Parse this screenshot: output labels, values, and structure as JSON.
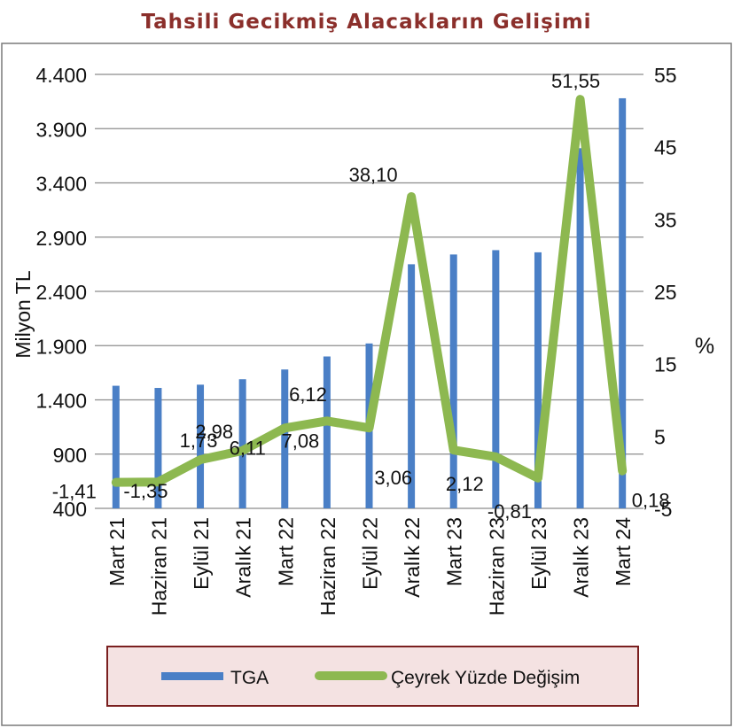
{
  "chart_data": {
    "type": "bar+line",
    "title": "Tahsili Gecikmiş Alacakların Gelişimi",
    "categories": [
      "Mart 21",
      "Haziran 21",
      "Eylül 21",
      "Aralık 21",
      "Mart 22",
      "Haziran 22",
      "Eylül 22",
      "Aralık 22",
      "Mart 23",
      "Haziran 23",
      "Eylül 23",
      "Aralık 23",
      "Mart 24"
    ],
    "left_axis": {
      "label": "Milyon TL",
      "min": 400,
      "max": 4400,
      "step": 500,
      "tick_labels": [
        "400",
        "900",
        "1.400",
        "1.900",
        "2.400",
        "2.900",
        "3.400",
        "3.900",
        "4.400"
      ]
    },
    "right_axis": {
      "label": "%",
      "min": -5,
      "max": 55,
      "step": 10,
      "tick_labels": [
        "-5",
        "5",
        "15",
        "25",
        "35",
        "45",
        "55"
      ]
    },
    "series": [
      {
        "name": "TGA",
        "type": "bar",
        "axis": "left",
        "color": "#4a7fc6",
        "values": [
          1530,
          1510,
          1540,
          1590,
          1680,
          1800,
          1920,
          2650,
          2740,
          2780,
          2760,
          3720,
          4180
        ]
      },
      {
        "name": "Çeyrek Yüzde Değişim",
        "type": "line",
        "axis": "right",
        "color": "#8db850",
        "values": [
          -1.41,
          -1.35,
          1.73,
          2.98,
          6.11,
          7.08,
          6.12,
          38.1,
          3.06,
          2.12,
          -0.81,
          51.55,
          0.18
        ],
        "labels": [
          "-1,41",
          "-1,35",
          "1,73",
          "2,98",
          "6,11",
          "7,08",
          "6,12",
          "38,10",
          "3,06",
          "2,12",
          "-0,81",
          "51,55",
          "0,18"
        ]
      }
    ],
    "gridlines": true,
    "legend": "bottom"
  }
}
